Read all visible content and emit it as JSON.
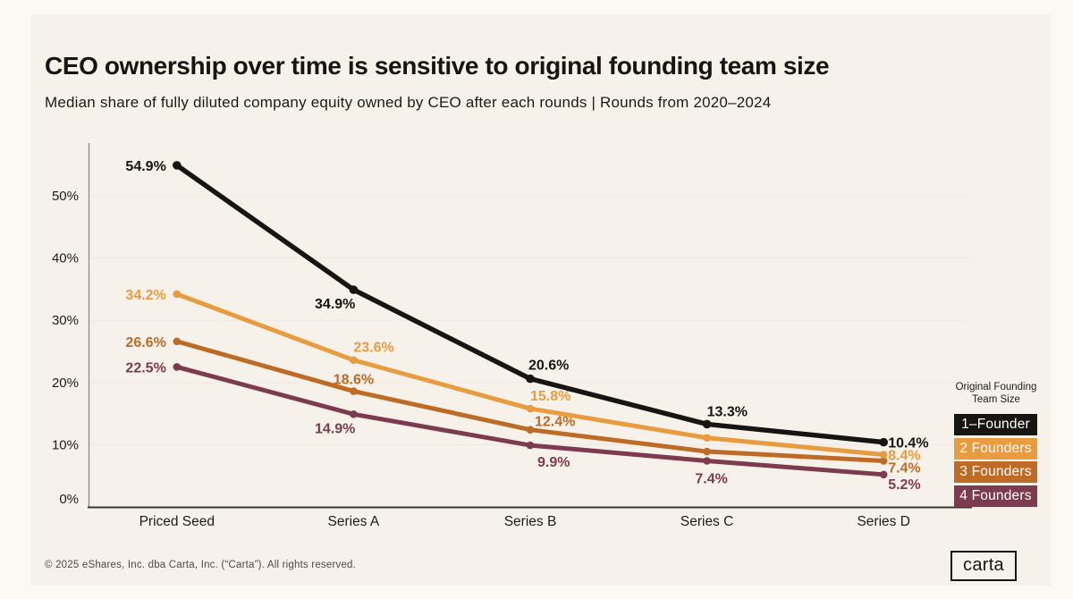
{
  "page": {
    "title": "CEO ownership over time is sensitive to original founding team size",
    "subtitle": "Median share of fully diluted company equity owned by CEO after each rounds | Rounds from 2020–2024",
    "footer": "© 2025 eShares, Inc. dba Carta, Inc. (“Carta”). All rights reserved.",
    "brand_logo": "carta"
  },
  "colors": {
    "outer_background": "#FCF9F1",
    "card_background": "#F6F2EA",
    "founder1": "#171513",
    "founder2": "#E89B3F",
    "founder3": "#BE6B25",
    "founder4": "#7C3B4E",
    "gridline": "#EFEBE2",
    "axis_bottom": "#3A3632",
    "axis_left": "#8F8A82",
    "tick_text": "#1d1b18"
  },
  "legend": {
    "title_line1": "Original Founding",
    "title_line2": "Team Size",
    "items": [
      {
        "label": "1–Founder",
        "color": "#171513"
      },
      {
        "label": "2 Founders",
        "color": "#E89B3F"
      },
      {
        "label": "3 Founders",
        "color": "#BE6B25"
      },
      {
        "label": "4 Founders",
        "color": "#7C3B4E"
      }
    ]
  },
  "chart_data": {
    "type": "line",
    "title": "CEO ownership over time is sensitive to original founding team size",
    "subtitle": "Median share of fully diluted company equity owned by CEO after each rounds | Rounds from 2020–2024",
    "categories": [
      "Priced Seed",
      "Series A",
      "Series B",
      "Series C",
      "Series D"
    ],
    "xlabel": "",
    "ylabel": "",
    "y_ticks": [
      {
        "value": 0,
        "label": "0%"
      },
      {
        "value": 10,
        "label": "10%"
      },
      {
        "value": 20,
        "label": "20%"
      },
      {
        "value": 30,
        "label": "30%"
      },
      {
        "value": 40,
        "label": "40%"
      },
      {
        "value": 50,
        "label": "50%"
      }
    ],
    "ylim": [
      0,
      58
    ],
    "grid": true,
    "legend_position": "right",
    "series": [
      {
        "name": "1-Founder",
        "color": "#171513",
        "values": [
          54.9,
          34.9,
          20.6,
          13.3,
          10.4
        ],
        "labels": [
          "54.9%",
          "34.9%",
          "20.6%",
          "13.3%",
          "10.4%"
        ]
      },
      {
        "name": "2 Founders",
        "color": "#E89B3F",
        "values": [
          34.2,
          23.6,
          15.8,
          11.1,
          8.4
        ],
        "labels": [
          "34.2%",
          "23.6%",
          "15.8%",
          null,
          "8.4%"
        ]
      },
      {
        "name": "3 Founders",
        "color": "#BE6B25",
        "values": [
          26.6,
          18.6,
          12.4,
          8.9,
          7.4
        ],
        "labels": [
          "26.6%",
          "18.6%",
          "12.4%",
          null,
          "7.4%"
        ]
      },
      {
        "name": "4 Founders",
        "color": "#7C3B4E",
        "values": [
          22.5,
          14.9,
          9.9,
          7.4,
          5.2
        ],
        "labels": [
          "22.5%",
          "14.9%",
          "9.9%",
          "7.4%",
          "5.2%"
        ]
      }
    ]
  }
}
